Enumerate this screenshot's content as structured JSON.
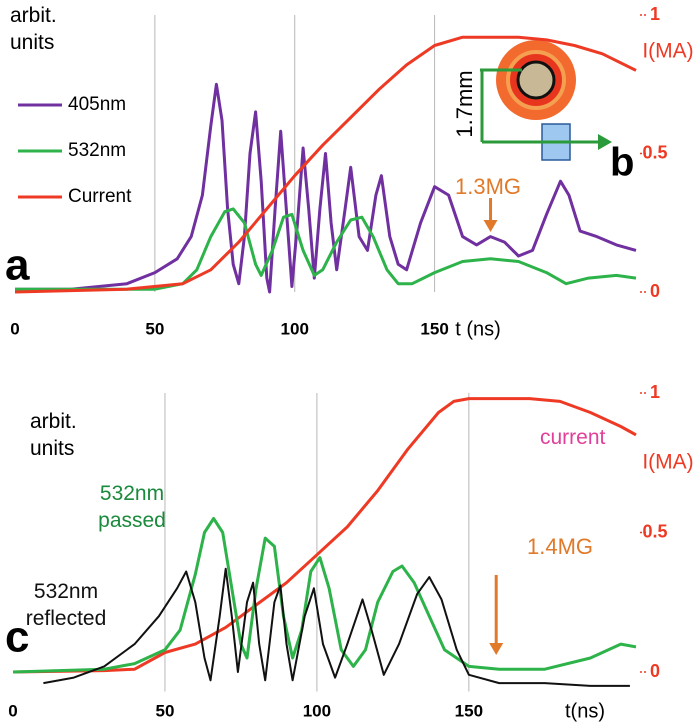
{
  "chart_data": [
    {
      "type": "line",
      "panel": "a",
      "y_label": [
        "arbit.",
        "units"
      ],
      "x_label": "t (ns)",
      "y2_label": "I(MA)",
      "xlim": [
        0,
        222
      ],
      "xticks": [
        0,
        50,
        100,
        150
      ],
      "ylim": [
        0,
        1
      ],
      "y2lim": [
        0,
        1
      ],
      "y2ticks": [
        0,
        0.5,
        1
      ],
      "grid": "x",
      "legend": "upper left",
      "series": [
        {
          "name": "405nm",
          "color": "#7030a0",
          "x": [
            0,
            20,
            40,
            50,
            58,
            63,
            67,
            70,
            72,
            74,
            76,
            78,
            80,
            82,
            84,
            86,
            88,
            90,
            91,
            93,
            95,
            97,
            99,
            101,
            103,
            105,
            107,
            109,
            111,
            113,
            115,
            118,
            120,
            123,
            126,
            129,
            131,
            134,
            137,
            140,
            145,
            150,
            155,
            160,
            165,
            170,
            175,
            180,
            185,
            190,
            195,
            198,
            202,
            208,
            215,
            222
          ],
          "values": [
            0.01,
            0.01,
            0.03,
            0.07,
            0.12,
            0.2,
            0.35,
            0.6,
            0.75,
            0.62,
            0.3,
            0.1,
            0.03,
            0.2,
            0.5,
            0.65,
            0.4,
            0.05,
            0.0,
            0.3,
            0.58,
            0.3,
            0.02,
            0.25,
            0.52,
            0.3,
            0.05,
            0.3,
            0.5,
            0.25,
            0.08,
            0.3,
            0.45,
            0.2,
            0.15,
            0.35,
            0.42,
            0.2,
            0.1,
            0.08,
            0.25,
            0.38,
            0.35,
            0.2,
            0.17,
            0.2,
            0.18,
            0.13,
            0.15,
            0.28,
            0.4,
            0.35,
            0.22,
            0.2,
            0.17,
            0.15
          ]
        },
        {
          "name": "532nm",
          "color": "#2db34a",
          "x": [
            0,
            50,
            60,
            65,
            70,
            75,
            78,
            82,
            86,
            88,
            92,
            96,
            99,
            103,
            107,
            110,
            115,
            120,
            124,
            128,
            133,
            137,
            142,
            150,
            160,
            170,
            180,
            190,
            197,
            205,
            215,
            222
          ],
          "values": [
            0.01,
            0.01,
            0.03,
            0.08,
            0.2,
            0.29,
            0.3,
            0.25,
            0.1,
            0.06,
            0.15,
            0.27,
            0.28,
            0.15,
            0.06,
            0.08,
            0.18,
            0.26,
            0.27,
            0.2,
            0.08,
            0.03,
            0.03,
            0.07,
            0.11,
            0.12,
            0.11,
            0.07,
            0.03,
            0.05,
            0.06,
            0.05
          ]
        },
        {
          "name": "Current",
          "color": "#ee3a24",
          "axis": "y2",
          "x": [
            0,
            40,
            60,
            70,
            80,
            90,
            100,
            110,
            120,
            130,
            140,
            150,
            160,
            180,
            190,
            200,
            210,
            222
          ],
          "values": [
            0,
            0.01,
            0.03,
            0.08,
            0.18,
            0.3,
            0.42,
            0.53,
            0.63,
            0.73,
            0.82,
            0.89,
            0.92,
            0.92,
            0.91,
            0.89,
            0.86,
            0.8
          ]
        }
      ],
      "annotations": [
        {
          "text": "1.3MG",
          "x": 170,
          "color": "#e07a2a"
        }
      ],
      "inset": {
        "label": "b",
        "dimension": "1.7mm"
      }
    },
    {
      "type": "line",
      "panel": "c",
      "y_label": [
        "arbit.",
        "units"
      ],
      "x_label": "t(ns)",
      "y2_label": "I(MA)",
      "xlim": [
        0,
        205
      ],
      "xticks": [
        0,
        50,
        100,
        150
      ],
      "ylim": [
        -0.07,
        1
      ],
      "y2lim": [
        0,
        1
      ],
      "y2ticks": [
        0,
        0.5,
        1
      ],
      "grid": "x",
      "legend": "none",
      "series": [
        {
          "name": "current",
          "color": "#ee3a24",
          "label_color": "#e0409a",
          "axis": "y2",
          "x": [
            0,
            30,
            40,
            50,
            60,
            70,
            80,
            90,
            100,
            110,
            120,
            130,
            140,
            145,
            150,
            170,
            180,
            190,
            200,
            205
          ],
          "values": [
            0,
            0.005,
            0.01,
            0.07,
            0.1,
            0.16,
            0.24,
            0.32,
            0.42,
            0.52,
            0.65,
            0.8,
            0.93,
            0.97,
            0.98,
            0.98,
            0.97,
            0.93,
            0.88,
            0.85
          ]
        },
        {
          "name": "532nm passed",
          "color": "#2db34a",
          "label_color": "#1a8a3c",
          "x": [
            0,
            30,
            40,
            50,
            55,
            60,
            63,
            66,
            69,
            72,
            75,
            77,
            80,
            83,
            86,
            89,
            92,
            95,
            98,
            101,
            104,
            108,
            112,
            116,
            120,
            125,
            128,
            132,
            137,
            142,
            150,
            160,
            175,
            190,
            200,
            205
          ],
          "values": [
            0,
            0.01,
            0.03,
            0.08,
            0.15,
            0.35,
            0.5,
            0.55,
            0.5,
            0.3,
            0.1,
            0.05,
            0.3,
            0.48,
            0.45,
            0.2,
            0.05,
            0.15,
            0.36,
            0.41,
            0.3,
            0.08,
            0.02,
            0.08,
            0.25,
            0.36,
            0.38,
            0.32,
            0.2,
            0.08,
            0.02,
            0.01,
            0.01,
            0.05,
            0.1,
            0.09
          ]
        },
        {
          "name": "532nm reflected",
          "color": "#111111",
          "label_color": "#111111",
          "x": [
            10,
            20,
            30,
            40,
            48,
            54,
            57,
            60,
            63,
            65,
            68,
            70,
            72,
            74,
            77,
            79,
            81,
            83,
            86,
            88,
            90,
            92,
            96,
            99,
            102,
            106,
            110,
            115,
            118,
            122,
            127,
            133,
            137,
            141,
            146,
            150,
            160,
            175,
            190,
            203
          ],
          "values": [
            -0.04,
            -0.02,
            0.02,
            0.1,
            0.2,
            0.3,
            0.36,
            0.25,
            0.05,
            -0.03,
            0.2,
            0.37,
            0.2,
            0.0,
            0.25,
            0.32,
            0.1,
            -0.03,
            0.25,
            0.31,
            0.1,
            -0.03,
            0.2,
            0.3,
            0.1,
            -0.02,
            0.1,
            0.26,
            0.15,
            -0.01,
            0.1,
            0.28,
            0.34,
            0.26,
            0.08,
            -0.01,
            -0.04,
            -0.04,
            -0.05,
            -0.05
          ]
        }
      ],
      "annotations": [
        {
          "text": "1.4MG",
          "x": 159,
          "color": "#e07a2a"
        }
      ]
    }
  ]
}
